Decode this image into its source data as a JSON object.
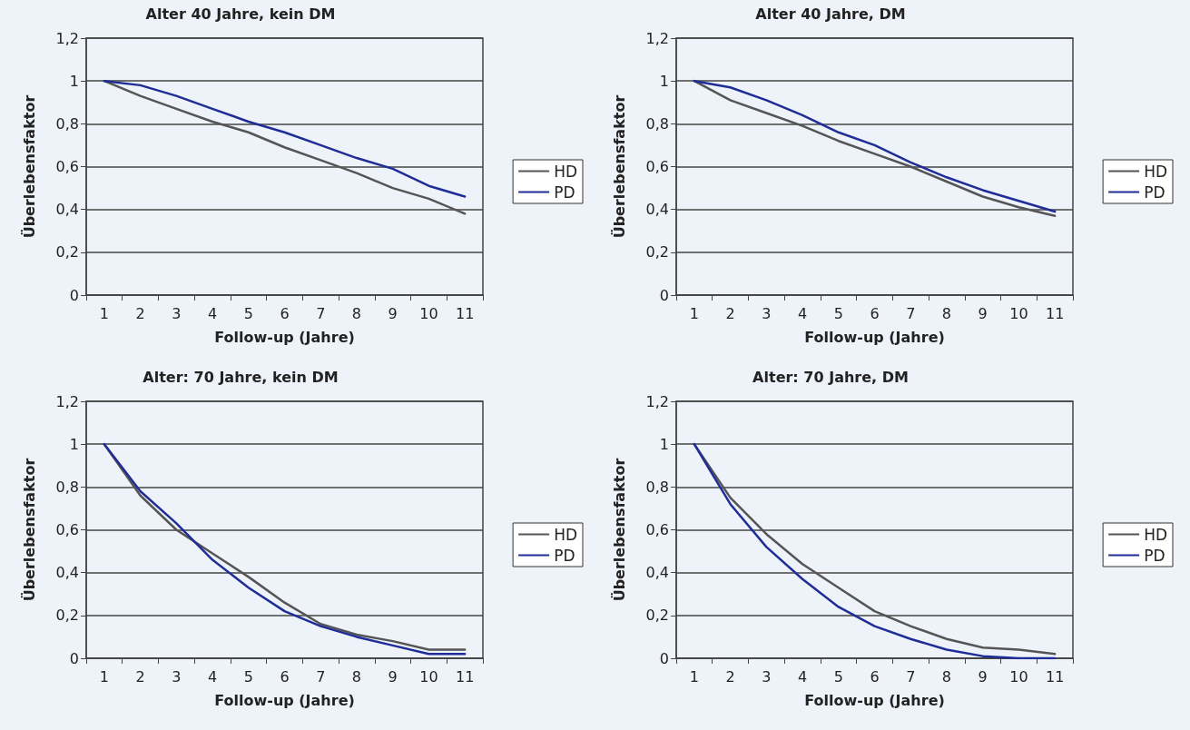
{
  "chart_data": [
    {
      "type": "line",
      "title": "Alter 40 Jahre, kein DM",
      "xlabel": "Follow-up (Jahre)",
      "ylabel": "Überlebensfaktor",
      "categories": [
        "1",
        "2",
        "3",
        "4",
        "5",
        "6",
        "7",
        "8",
        "9",
        "10",
        "11"
      ],
      "ylim": [
        0,
        1.2
      ],
      "yticks": [
        {
          "value": 0,
          "label": "0"
        },
        {
          "value": 0.2,
          "label": "0,2"
        },
        {
          "value": 0.4,
          "label": "0,4"
        },
        {
          "value": 0.6,
          "label": "0,6"
        },
        {
          "value": 0.8,
          "label": "0,8"
        },
        {
          "value": 1,
          "label": "1"
        },
        {
          "value": 1.2,
          "label": "1,2"
        }
      ],
      "grid": "y",
      "legend": "right",
      "marker": "none",
      "series": [
        {
          "name": "HD",
          "color": "#555555",
          "values": [
            1,
            0.93,
            0.87,
            0.81,
            0.76,
            0.69,
            0.63,
            0.57,
            0.5,
            0.45,
            0.38
          ]
        },
        {
          "name": "PD",
          "color": "#1f2d96",
          "values": [
            1,
            0.98,
            0.93,
            0.87,
            0.81,
            0.76,
            0.7,
            0.64,
            0.59,
            0.51,
            0.46
          ]
        }
      ]
    },
    {
      "type": "line",
      "title": "Alter 40 Jahre, DM",
      "xlabel": "Follow-up (Jahre)",
      "ylabel": "Überlebensfaktor",
      "categories": [
        "1",
        "2",
        "3",
        "4",
        "5",
        "6",
        "7",
        "8",
        "9",
        "10",
        "11"
      ],
      "ylim": [
        0,
        1.2
      ],
      "yticks": [
        {
          "value": 0,
          "label": "0"
        },
        {
          "value": 0.2,
          "label": "0,2"
        },
        {
          "value": 0.4,
          "label": "0,4"
        },
        {
          "value": 0.6,
          "label": "0,6"
        },
        {
          "value": 0.8,
          "label": "0,8"
        },
        {
          "value": 1,
          "label": "1"
        },
        {
          "value": 1.2,
          "label": "1,2"
        }
      ],
      "grid": "y",
      "legend": "right",
      "marker": "none",
      "series": [
        {
          "name": "HD",
          "color": "#555555",
          "values": [
            1,
            0.91,
            0.85,
            0.79,
            0.72,
            0.66,
            0.6,
            0.53,
            0.46,
            0.41,
            0.37
          ]
        },
        {
          "name": "PD",
          "color": "#1f2d96",
          "values": [
            1,
            0.97,
            0.91,
            0.84,
            0.76,
            0.7,
            0.62,
            0.55,
            0.49,
            0.44,
            0.39
          ]
        }
      ]
    },
    {
      "type": "line",
      "title": "Alter: 70 Jahre, kein DM",
      "xlabel": "Follow-up (Jahre)",
      "ylabel": "Überlebensfaktor",
      "categories": [
        "1",
        "2",
        "3",
        "4",
        "5",
        "6",
        "7",
        "8",
        "9",
        "10",
        "11"
      ],
      "ylim": [
        0,
        1.2
      ],
      "yticks": [
        {
          "value": 0,
          "label": "0"
        },
        {
          "value": 0.2,
          "label": "0,2"
        },
        {
          "value": 0.4,
          "label": "0,4"
        },
        {
          "value": 0.6,
          "label": "0,6"
        },
        {
          "value": 0.8,
          "label": "0,8"
        },
        {
          "value": 1,
          "label": "1"
        },
        {
          "value": 1.2,
          "label": "1,2"
        }
      ],
      "grid": "y",
      "legend": "right",
      "marker": "none",
      "series": [
        {
          "name": "HD",
          "color": "#555555",
          "values": [
            1,
            0.76,
            0.6,
            0.49,
            0.38,
            0.26,
            0.16,
            0.11,
            0.08,
            0.04,
            0.04
          ]
        },
        {
          "name": "PD",
          "color": "#1f2d96",
          "values": [
            1,
            0.78,
            0.63,
            0.46,
            0.33,
            0.22,
            0.15,
            0.1,
            0.06,
            0.02,
            0.02
          ]
        }
      ]
    },
    {
      "type": "line",
      "title": "Alter: 70 Jahre, DM",
      "xlabel": "Follow-up (Jahre)",
      "ylabel": "Überlebensfaktor",
      "categories": [
        "1",
        "2",
        "3",
        "4",
        "5",
        "6",
        "7",
        "8",
        "9",
        "10",
        "11"
      ],
      "ylim": [
        0,
        1.2
      ],
      "yticks": [
        {
          "value": 0,
          "label": "0"
        },
        {
          "value": 0.2,
          "label": "0,2"
        },
        {
          "value": 0.4,
          "label": "0,4"
        },
        {
          "value": 0.6,
          "label": "0,6"
        },
        {
          "value": 0.8,
          "label": "0,8"
        },
        {
          "value": 1,
          "label": "1"
        },
        {
          "value": 1.2,
          "label": "1,2"
        }
      ],
      "grid": "y",
      "legend": "right",
      "marker": "none",
      "series": [
        {
          "name": "HD",
          "color": "#555555",
          "values": [
            1,
            0.75,
            0.58,
            0.44,
            0.33,
            0.22,
            0.15,
            0.09,
            0.05,
            0.04,
            0.02
          ]
        },
        {
          "name": "PD",
          "color": "#1f2d96",
          "values": [
            1,
            0.72,
            0.52,
            0.37,
            0.24,
            0.15,
            0.09,
            0.04,
            0.01,
            0,
            0
          ]
        }
      ]
    }
  ]
}
